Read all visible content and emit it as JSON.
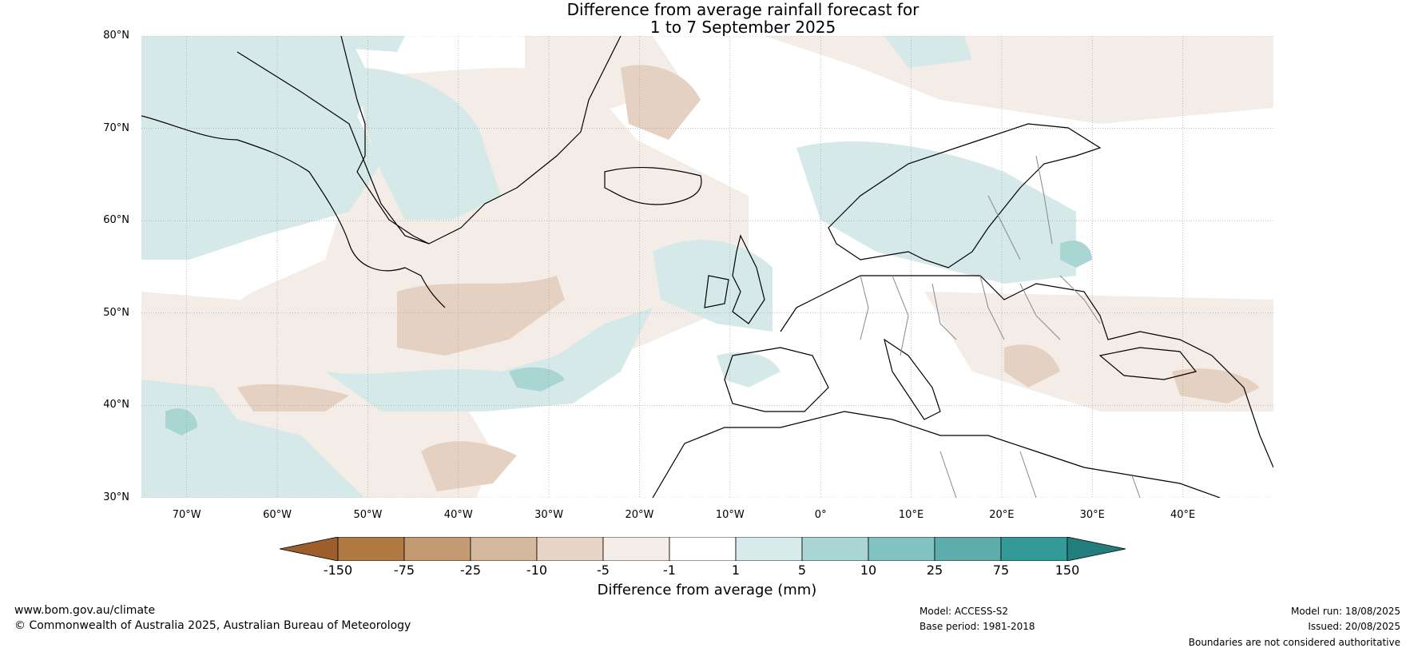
{
  "title": {
    "line1": "Difference from average rainfall forecast for",
    "line2": "1 to 7 September 2025"
  },
  "map": {
    "projection": "equirectangular",
    "lon_range": [
      -75,
      50
    ],
    "lat_range": [
      30,
      80
    ],
    "gridlines": true,
    "lat_ticks": [
      "80°N",
      "70°N",
      "60°N",
      "50°N",
      "40°N",
      "30°N"
    ],
    "lon_ticks": [
      "70°W",
      "60°W",
      "50°W",
      "40°W",
      "30°W",
      "20°W",
      "10°W",
      "0°",
      "10°E",
      "20°E",
      "30°E",
      "40°E"
    ],
    "lat_values": [
      80,
      70,
      60,
      50,
      40,
      30
    ],
    "lon_values": [
      -70,
      -60,
      -50,
      -40,
      -30,
      -20,
      -10,
      0,
      10,
      20,
      30,
      40
    ],
    "colors": {
      "wet_light": "#d5e9e8",
      "wet_mid": "#a9d5d3",
      "dry_light": "#f4ede7",
      "dry_mid": "#e5d1c1",
      "land_outline": "#000000",
      "border": "#888888"
    }
  },
  "legend": {
    "ticks": [
      "-150",
      "-75",
      "-25",
      "-10",
      "-5",
      "-1",
      "1",
      "5",
      "10",
      "25",
      "75",
      "150"
    ],
    "colors": [
      "#9c5f2b",
      "#b27a43",
      "#c49a72",
      "#d6b89e",
      "#e7d4c4",
      "#f5eee8",
      "#ffffff",
      "#d6ebea",
      "#a9d6d5",
      "#82c3c1",
      "#5cadab",
      "#339a98",
      "#227e7c"
    ],
    "label": "Difference from average (mm)"
  },
  "footer": {
    "website": "www.bom.gov.au/climate",
    "copyright": "© Commonwealth of Australia 2025, Australian Bureau of Meteorology",
    "model": "Model: ACCESS-S2",
    "base_period": "Base period: 1981-2018",
    "model_run": "Model run: 18/08/2025",
    "issued": "Issued: 20/08/2025",
    "disclaimer": "Boundaries are not considered authoritative"
  }
}
